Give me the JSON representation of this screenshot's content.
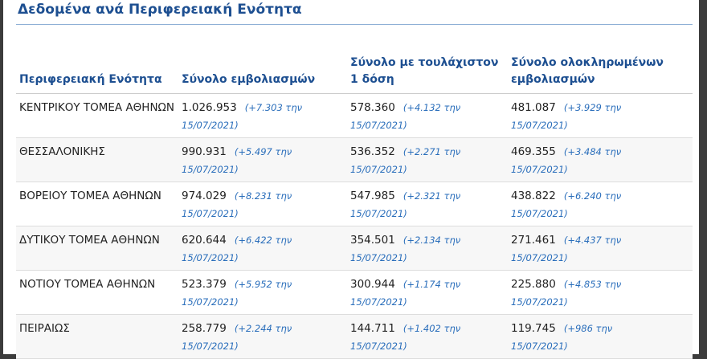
{
  "header": {
    "title": "Δεδομένα ανά Περιφερειακή Ενότητα"
  },
  "table": {
    "columns": [
      "Περιφερειακή Ενότητα",
      "Σύνολο εμβολιασμών",
      "Σύνολο με τουλάχιστον 1 δόση",
      "Σύνολο ολοκληρωμένων εμβολιασμών"
    ],
    "rows": [
      [
        "ΚΕΝΤΡΙΚΟΥ ΤΟΜΕΑ ΑΘΗΝΩΝ",
        {
          "value": "1.026.953",
          "change": "(+7.303 την 15/07/2021)"
        },
        {
          "value": "578.360",
          "change": "(+4.132 την 15/07/2021)"
        },
        {
          "value": "481.087",
          "change": "(+3.929 την 15/07/2021)"
        }
      ],
      [
        "ΘΕΣΣΑΛΟΝΙΚΗΣ",
        {
          "value": "990.931",
          "change": "(+5.497 την 15/07/2021)"
        },
        {
          "value": "536.352",
          "change": "(+2.271 την 15/07/2021)"
        },
        {
          "value": "469.355",
          "change": "(+3.484 την 15/07/2021)"
        }
      ],
      [
        "ΒΟΡΕΙΟΥ ΤΟΜΕΑ ΑΘΗΝΩΝ",
        {
          "value": "974.029",
          "change": "(+8.231 την 15/07/2021)"
        },
        {
          "value": "547.985",
          "change": "(+2.321 την 15/07/2021)"
        },
        {
          "value": "438.822",
          "change": "(+6.240 την 15/07/2021)"
        }
      ],
      [
        "ΔΥΤΙΚΟΥ ΤΟΜΕΑ ΑΘΗΝΩΝ",
        {
          "value": "620.644",
          "change": "(+6.422 την 15/07/2021)"
        },
        {
          "value": "354.501",
          "change": "(+2.134 την 15/07/2021)"
        },
        {
          "value": "271.461",
          "change": "(+4.437 την 15/07/2021)"
        }
      ],
      [
        "ΝΟΤΙΟΥ ΤΟΜΕΑ ΑΘΗΝΩΝ",
        {
          "value": "523.379",
          "change": "(+5.952 την 15/07/2021)"
        },
        {
          "value": "300.944",
          "change": "(+1.174 την 15/07/2021)"
        },
        {
          "value": "225.880",
          "change": "(+4.853 την 15/07/2021)"
        }
      ],
      [
        "ΠΕΙΡΑΙΩΣ",
        {
          "value": "258.779",
          "change": "(+2.244 την 15/07/2021)"
        },
        {
          "value": "144.711",
          "change": "(+1.402 την 15/07/2021)"
        },
        {
          "value": "119.745",
          "change": "(+986 την 15/07/2021)"
        }
      ]
    ]
  }
}
